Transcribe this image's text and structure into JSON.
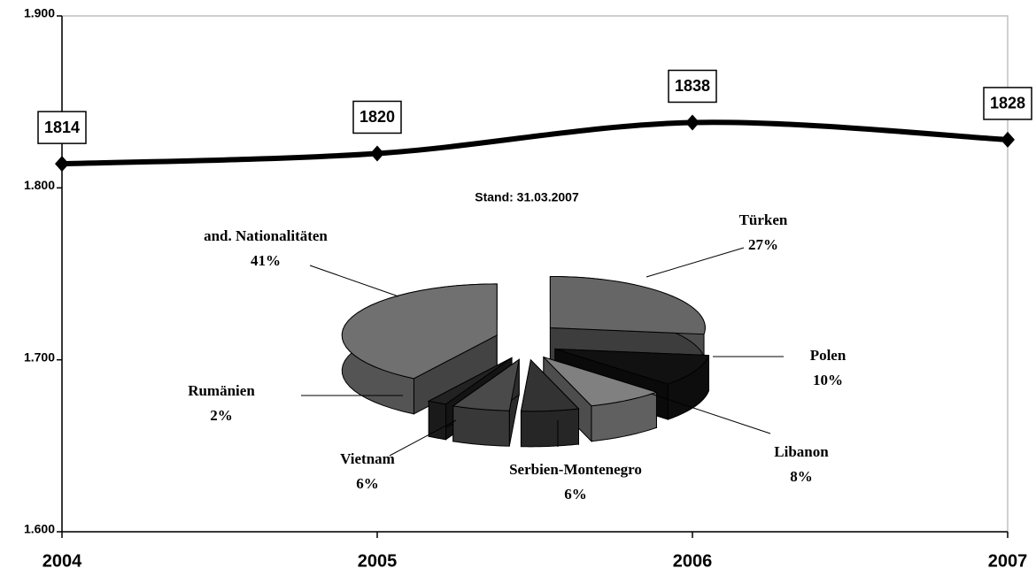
{
  "chart_data": [
    {
      "type": "line",
      "categories": [
        "2004",
        "2005",
        "2006",
        "2007"
      ],
      "series": [
        {
          "color": "#000000",
          "values": [
            1814,
            1820,
            1838,
            1828
          ]
        }
      ],
      "ylim": [
        1600,
        1900
      ],
      "yticks": [
        {
          "value": 1600,
          "label": "1.600"
        },
        {
          "value": 1700,
          "label": "1.700"
        },
        {
          "value": 1800,
          "label": "1.800"
        },
        {
          "value": 1900,
          "label": "1.900"
        }
      ],
      "grid": false
    },
    {
      "type": "pie3d",
      "title": "Stand: 31.03.2007",
      "categories": [
        "Türken",
        "Polen",
        "Libanon",
        "Serbien-Montenegro",
        "Vietnam",
        "Rumänien",
        "and. Nationalitäten"
      ],
      "values": [
        27,
        10,
        8,
        6,
        6,
        2,
        41
      ],
      "value_labels": [
        "27%",
        "10%",
        "8%",
        "6%",
        "6%",
        "2%",
        "41%"
      ],
      "colors": [
        "#666666",
        "#111111",
        "#808080",
        "#333333",
        "#4a4a4a",
        "#222222",
        "#707070"
      ]
    }
  ]
}
